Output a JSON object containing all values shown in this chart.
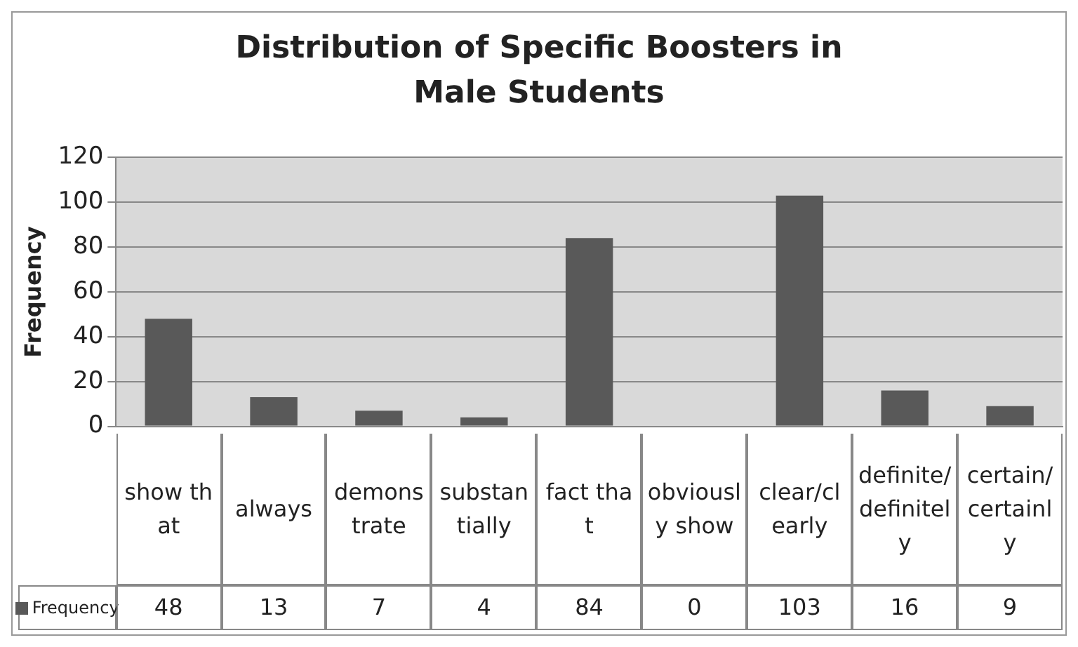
{
  "chart_data": {
    "type": "bar",
    "title": "Distribution of Specific Boosters in Male Students",
    "ylabel": "Frequency",
    "categories": [
      "show that",
      "always",
      "demonstrate",
      "substantially",
      "fact that",
      "obviously show",
      "clear/clearly",
      "definite/definitely",
      "certain/certainly"
    ],
    "series": [
      {
        "name": "Frequency",
        "color": "#595959",
        "values": [
          48,
          13,
          7,
          4,
          84,
          0,
          103,
          16,
          9
        ]
      }
    ],
    "ylim": [
      0,
      120
    ],
    "yticks": [
      0,
      20,
      40,
      60,
      80,
      100,
      120
    ],
    "grid": "y",
    "legend": "bottom",
    "data_labels": true
  }
}
